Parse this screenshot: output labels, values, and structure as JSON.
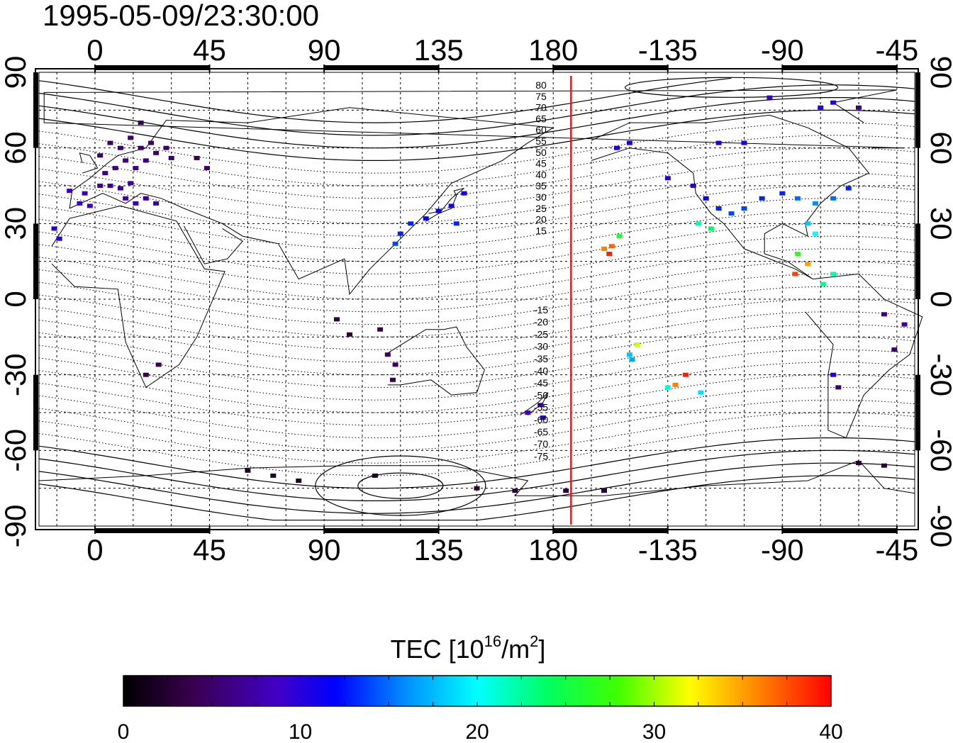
{
  "timestamp": "1995-05-09/23:30:00",
  "map": {
    "lon_ticks_top": [
      "0",
      "45",
      "90",
      "135",
      "180",
      "-135",
      "-90",
      "-45"
    ],
    "lon_ticks_bottom": [
      "0",
      "45",
      "90",
      "135",
      "180",
      "-135",
      "-90",
      "-45"
    ],
    "lat_ticks_left": [
      "90",
      "60",
      "30",
      "0",
      "-30",
      "-60",
      "-90"
    ],
    "lat_ticks_right": [
      "90",
      "60",
      "30",
      "0",
      "-30",
      "-60",
      "-90"
    ],
    "contour_labels_north": [
      "80",
      "75",
      "70",
      "65",
      "60",
      "55",
      "50",
      "45",
      "40",
      "35",
      "30",
      "25",
      "20",
      "15"
    ],
    "contour_labels_south": [
      "-15",
      "-20",
      "-25",
      "-30",
      "-35",
      "-40",
      "-45",
      "-50",
      "-55",
      "-60",
      "-65",
      "-70",
      "-75"
    ],
    "terminator_color": "#d42020"
  },
  "colorbar": {
    "title_prefix": "TEC  [10",
    "title_exp": "16",
    "title_mid": "/m",
    "title_exp2": "2",
    "title_suffix": "]",
    "ticks": [
      "0",
      "10",
      "20",
      "30",
      "40"
    ],
    "range": [
      0,
      40
    ]
  },
  "chart_data": {
    "type": "scatter",
    "title": "1995-05-09/23:30:00",
    "xlabel": "",
    "ylabel": "",
    "xlim": [
      -22,
      322
    ],
    "ylim": [
      -90,
      90
    ],
    "value_label": "TEC [10^16/m^2]",
    "value_range": [
      0,
      40
    ],
    "terminator_lon": 187,
    "points": [
      {
        "lon": 2,
        "lat": 57,
        "tec": 5
      },
      {
        "lon": 6,
        "lat": 62,
        "tec": 5
      },
      {
        "lon": 10,
        "lat": 60,
        "tec": 5
      },
      {
        "lon": 14,
        "lat": 64,
        "tec": 5
      },
      {
        "lon": 18,
        "lat": 60,
        "tec": 5
      },
      {
        "lon": 22,
        "lat": 62,
        "tec": 5
      },
      {
        "lon": 12,
        "lat": 55,
        "tec": 6
      },
      {
        "lon": 8,
        "lat": 52,
        "tec": 6
      },
      {
        "lon": 4,
        "lat": 50,
        "tec": 6
      },
      {
        "lon": 16,
        "lat": 52,
        "tec": 6
      },
      {
        "lon": 20,
        "lat": 55,
        "tec": 6
      },
      {
        "lon": 24,
        "lat": 58,
        "tec": 5
      },
      {
        "lon": 28,
        "lat": 60,
        "tec": 5
      },
      {
        "lon": 30,
        "lat": 56,
        "tec": 5
      },
      {
        "lon": 14,
        "lat": 46,
        "tec": 7
      },
      {
        "lon": 10,
        "lat": 44,
        "tec": 7
      },
      {
        "lon": 6,
        "lat": 45,
        "tec": 7
      },
      {
        "lon": 2,
        "lat": 45,
        "tec": 7
      },
      {
        "lon": -4,
        "lat": 42,
        "tec": 8
      },
      {
        "lon": -6,
        "lat": 38,
        "tec": 9
      },
      {
        "lon": -2,
        "lat": 37,
        "tec": 9
      },
      {
        "lon": 12,
        "lat": 40,
        "tec": 8
      },
      {
        "lon": 16,
        "lat": 38,
        "tec": 8
      },
      {
        "lon": 20,
        "lat": 40,
        "tec": 7
      },
      {
        "lon": 24,
        "lat": 38,
        "tec": 7
      },
      {
        "lon": -10,
        "lat": 43,
        "tec": 9
      },
      {
        "lon": -16,
        "lat": 28,
        "tec": 10
      },
      {
        "lon": -14,
        "lat": 24,
        "tec": 10
      },
      {
        "lon": 18,
        "lat": 70,
        "tec": 4
      },
      {
        "lon": 40,
        "lat": 56,
        "tec": 4
      },
      {
        "lon": 44,
        "lat": 52,
        "tec": 5
      },
      {
        "lon": 120,
        "lat": 26,
        "tec": 13
      },
      {
        "lon": 124,
        "lat": 30,
        "tec": 13
      },
      {
        "lon": 130,
        "lat": 32,
        "tec": 12
      },
      {
        "lon": 135,
        "lat": 35,
        "tec": 12
      },
      {
        "lon": 140,
        "lat": 37,
        "tec": 11
      },
      {
        "lon": 145,
        "lat": 42,
        "tec": 11
      },
      {
        "lon": 142,
        "lat": 30,
        "tec": 13
      },
      {
        "lon": 118,
        "lat": 22,
        "tec": 14
      },
      {
        "lon": 115,
        "lat": -22,
        "tec": 5
      },
      {
        "lon": 118,
        "lat": -26,
        "tec": 5
      },
      {
        "lon": 117,
        "lat": -32,
        "tec": 4
      },
      {
        "lon": 112,
        "lat": -12,
        "tec": 4
      },
      {
        "lon": 95,
        "lat": -8,
        "tec": 3
      },
      {
        "lon": 100,
        "lat": -14,
        "tec": 3
      },
      {
        "lon": 25,
        "lat": -26,
        "tec": 4
      },
      {
        "lon": 20,
        "lat": -30,
        "tec": 4
      },
      {
        "lon": 170,
        "lat": -45,
        "tec": 9
      },
      {
        "lon": 175,
        "lat": -42,
        "tec": 9
      },
      {
        "lon": 176,
        "lat": -47,
        "tec": 10
      },
      {
        "lon": 60,
        "lat": -68,
        "tec": 2
      },
      {
        "lon": 70,
        "lat": -70,
        "tec": 2
      },
      {
        "lon": 80,
        "lat": -72,
        "tec": 2
      },
      {
        "lon": 110,
        "lat": -70,
        "tec": 2
      },
      {
        "lon": 150,
        "lat": -75,
        "tec": 3
      },
      {
        "lon": 165,
        "lat": -76,
        "tec": 3
      },
      {
        "lon": 185,
        "lat": -76,
        "tec": 3
      },
      {
        "lon": 200,
        "lat": -76,
        "tec": 3
      },
      {
        "lon": 200,
        "lat": 20,
        "tec": 36
      },
      {
        "lon": 203,
        "lat": 21,
        "tec": 37
      },
      {
        "lon": 202,
        "lat": 18,
        "tec": 39
      },
      {
        "lon": 206,
        "lat": 25,
        "tec": 26
      },
      {
        "lon": 210,
        "lat": -22,
        "tec": 18
      },
      {
        "lon": 213,
        "lat": -18,
        "tec": 31
      },
      {
        "lon": 211,
        "lat": -24,
        "tec": 17
      },
      {
        "lon": 228,
        "lat": -34,
        "tec": 36
      },
      {
        "lon": 232,
        "lat": -30,
        "tec": 39
      },
      {
        "lon": 225,
        "lat": -35,
        "tec": 21
      },
      {
        "lon": 238,
        "lat": -37,
        "tec": 19
      },
      {
        "lon": 225,
        "lat": 48,
        "tec": 10
      },
      {
        "lon": 235,
        "lat": 45,
        "tec": 10
      },
      {
        "lon": 240,
        "lat": 40,
        "tec": 12
      },
      {
        "lon": 245,
        "lat": 36,
        "tec": 13
      },
      {
        "lon": 250,
        "lat": 34,
        "tec": 14
      },
      {
        "lon": 255,
        "lat": 36,
        "tec": 14
      },
      {
        "lon": 262,
        "lat": 40,
        "tec": 13
      },
      {
        "lon": 270,
        "lat": 42,
        "tec": 13
      },
      {
        "lon": 276,
        "lat": 40,
        "tec": 15
      },
      {
        "lon": 283,
        "lat": 38,
        "tec": 16
      },
      {
        "lon": 290,
        "lat": 40,
        "tec": 15
      },
      {
        "lon": 296,
        "lat": 44,
        "tec": 13
      },
      {
        "lon": 280,
        "lat": 30,
        "tec": 18
      },
      {
        "lon": 283,
        "lat": 26,
        "tec": 20
      },
      {
        "lon": 237,
        "lat": 30,
        "tec": 22
      },
      {
        "lon": 242,
        "lat": 28,
        "tec": 24
      },
      {
        "lon": 276,
        "lat": 18,
        "tec": 27
      },
      {
        "lon": 280,
        "lat": 14,
        "tec": 35
      },
      {
        "lon": 275,
        "lat": 10,
        "tec": 38
      },
      {
        "lon": 290,
        "lat": 10,
        "tec": 22
      },
      {
        "lon": 286,
        "lat": 6,
        "tec": 23
      },
      {
        "lon": 210,
        "lat": 62,
        "tec": 11
      },
      {
        "lon": 205,
        "lat": 60,
        "tec": 11
      },
      {
        "lon": 245,
        "lat": 62,
        "tec": 11
      },
      {
        "lon": 255,
        "lat": 62,
        "tec": 11
      },
      {
        "lon": 265,
        "lat": 80,
        "tec": 9
      },
      {
        "lon": 285,
        "lat": 76,
        "tec": 10
      },
      {
        "lon": 290,
        "lat": 78,
        "tec": 10
      },
      {
        "lon": 300,
        "lat": 76,
        "tec": 6
      },
      {
        "lon": 310,
        "lat": -6,
        "tec": 6
      },
      {
        "lon": 318,
        "lat": -10,
        "tec": 7
      },
      {
        "lon": 314,
        "lat": -20,
        "tec": 5
      },
      {
        "lon": 290,
        "lat": -30,
        "tec": 11
      },
      {
        "lon": 292,
        "lat": -35,
        "tec": 5
      },
      {
        "lon": 300,
        "lat": -65,
        "tec": 3
      },
      {
        "lon": 310,
        "lat": -66,
        "tec": 3
      }
    ]
  }
}
